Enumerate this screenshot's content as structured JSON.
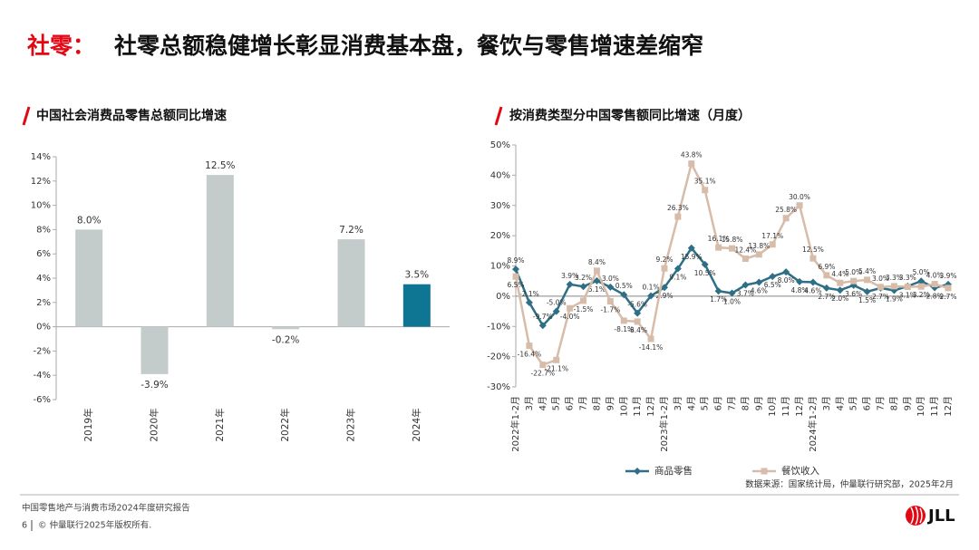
{
  "header": {
    "title_prefix": "社零：",
    "title": "社零总额稳健增长彰显消费基本盘，餐饮与零售增速差缩窄"
  },
  "chart_data": [
    {
      "type": "bar",
      "title": "中国社会消费品零售总额同比增速",
      "categories": [
        "2019年",
        "2020年",
        "2021年",
        "2022年",
        "2023年",
        "2024年"
      ],
      "values": [
        8.0,
        -3.9,
        12.5,
        -0.2,
        7.2,
        3.5
      ],
      "value_labels": [
        "8.0%",
        "-3.9%",
        "12.5%",
        "-0.2%",
        "7.2%",
        "3.5%"
      ],
      "colors": [
        "#c3cbcb",
        "#c3cbcb",
        "#c3cbcb",
        "#c3cbcb",
        "#c3cbcb",
        "#0e7592"
      ],
      "ylim": [
        -6,
        14
      ],
      "yticks": [
        {
          "value": -6,
          "label": "-6%"
        },
        {
          "value": -4,
          "label": "-4%"
        },
        {
          "value": -2,
          "label": "-2%"
        },
        {
          "value": 0,
          "label": "0%"
        },
        {
          "value": 2,
          "label": "2%"
        },
        {
          "value": 4,
          "label": "4%"
        },
        {
          "value": 6,
          "label": "6%"
        },
        {
          "value": 8,
          "label": "8%"
        },
        {
          "value": 10,
          "label": "10%"
        },
        {
          "value": 12,
          "label": "12%"
        },
        {
          "value": 14,
          "label": "14%"
        }
      ]
    },
    {
      "type": "line",
      "title": "按消费类型分中国零售额同比增速（月度）",
      "categories": [
        "2022年1-2月",
        "3月",
        "4月",
        "5月",
        "6月",
        "7月",
        "8月",
        "9月",
        "10月",
        "11月",
        "12月",
        "2023年1-2月",
        "3月",
        "4月",
        "5月",
        "6月",
        "7月",
        "8月",
        "9月",
        "10月",
        "11月",
        "12月",
        "2024年1-2月",
        "3月",
        "4月",
        "5月",
        "6月",
        "7月",
        "8月",
        "9月",
        "10月",
        "11月",
        "12月"
      ],
      "series": [
        {
          "name": "商品零售",
          "color": "#2f6f86",
          "values": [
            8.9,
            -2.1,
            -9.7,
            -5.0,
            3.9,
            3.2,
            5.1,
            3.0,
            0.5,
            -5.6,
            0.1,
            2.9,
            9.1,
            15.9,
            10.5,
            1.7,
            1.0,
            3.7,
            4.6,
            6.5,
            8.0,
            4.8,
            4.6,
            2.7,
            2.0,
            3.6,
            1.5,
            2.7,
            1.9,
            3.3,
            5.0,
            2.8,
            3.9
          ],
          "value_labels": [
            "8.9%",
            "-2.1%",
            "-9.7%",
            "-5.0%",
            "3.9%",
            "3.2%",
            "5.1%",
            "3.0%",
            "0.5%",
            "-5.6%",
            "0.1%",
            "2.9%",
            "9.1%",
            "15.9%",
            "10.5%",
            "1.7%",
            "1.0%",
            "3.7%",
            "4.6%",
            "6.5%",
            "8.0%",
            "4.8%",
            "4.6%",
            "2.7%",
            "2.0%",
            "3.6%",
            "1.5%",
            "2.7%",
            "1.9%",
            "3.3%",
            "5.0%",
            "2.8%",
            "3.9%"
          ]
        },
        {
          "name": "餐饮收入",
          "color": "#d6bca9",
          "values": [
            6.5,
            -16.4,
            -22.7,
            -21.1,
            -4.0,
            -1.5,
            8.4,
            -1.7,
            -8.1,
            -8.4,
            -14.1,
            9.2,
            26.3,
            43.8,
            35.1,
            16.1,
            15.8,
            12.4,
            13.8,
            17.1,
            25.8,
            30.0,
            12.5,
            6.9,
            4.4,
            5.0,
            5.4,
            3.0,
            3.3,
            3.1,
            3.2,
            4.0,
            2.7
          ],
          "value_labels": [
            "6.5%",
            "-16.4%",
            "-22.7%",
            "-21.1%",
            "-4.0%",
            "-1.5%",
            "8.4%",
            "-1.7%",
            "-8.1%",
            "-8.4%",
            "-14.1%",
            "9.2%",
            "26.3%",
            "43.8%",
            "35.1%",
            "16.1%",
            "15.8%",
            "12.4%",
            "13.8%",
            "17.1%",
            "25.8%",
            "30.0%",
            "12.5%",
            "6.9%",
            "4.4%",
            "5.0%",
            "5.4%",
            "3.0%",
            "3.3%",
            "3.1%",
            "3.2%",
            "4.0%",
            "2.7%"
          ]
        }
      ],
      "ylim": [
        -30,
        50
      ],
      "yticks": [
        {
          "value": -30,
          "label": "-30%"
        },
        {
          "value": -20,
          "label": "-20%"
        },
        {
          "value": -10,
          "label": "-10%"
        },
        {
          "value": 0,
          "label": "0%"
        },
        {
          "value": 10,
          "label": "10%"
        },
        {
          "value": 20,
          "label": "20%"
        },
        {
          "value": 30,
          "label": "30%"
        },
        {
          "value": 40,
          "label": "40%"
        },
        {
          "value": 50,
          "label": "50%"
        }
      ],
      "legend": "bottom",
      "source": "数据来源：国家统计局，仲量联行研究部，2025年2月"
    }
  ],
  "footer": {
    "report": "中国零售地产与消费市场2024年度研究报告",
    "page": "6",
    "copyright": "© 仲量联行2025年版权所有."
  },
  "logo": "JLL"
}
